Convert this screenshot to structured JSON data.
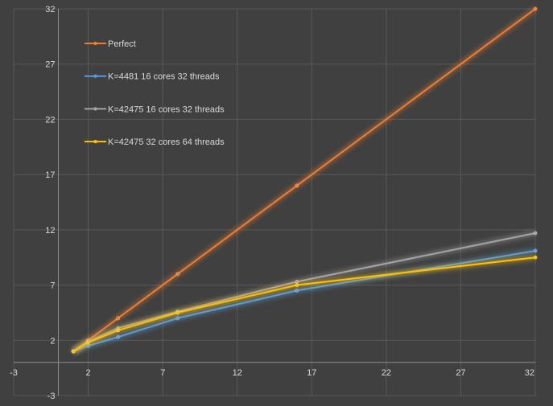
{
  "chart_data": {
    "type": "scatter",
    "title": "",
    "xlabel": "",
    "ylabel": "",
    "xlim": [
      -3,
      32
    ],
    "ylim": [
      -3,
      32
    ],
    "xticks": [
      -3,
      2,
      7,
      12,
      17,
      22,
      27,
      32
    ],
    "yticks": [
      -3,
      2,
      7,
      12,
      17,
      22,
      27,
      32
    ],
    "grid": true,
    "legend_position": "top-left",
    "series": [
      {
        "name": "Perfect",
        "color": "#ed7d31",
        "x": [
          1,
          2,
          4,
          8,
          16,
          32
        ],
        "y": [
          1,
          2,
          4,
          8,
          16,
          32
        ]
      },
      {
        "name": "K=4481 16 cores 32 threads",
        "color": "#5b9bd5",
        "x": [
          1,
          2,
          4,
          8,
          16,
          32
        ],
        "y": [
          1,
          1.5,
          2.3,
          4.0,
          6.5,
          10.1
        ]
      },
      {
        "name": "K=42475 16 cores 32 threads",
        "color": "#a5a5a5",
        "x": [
          1,
          2,
          4,
          8,
          16,
          32
        ],
        "y": [
          1,
          1.9,
          3.1,
          4.6,
          7.3,
          11.7
        ]
      },
      {
        "name": "K=42475 32 cores 64 threads",
        "color": "#ffc000",
        "x": [
          1,
          2,
          4,
          8,
          16,
          32
        ],
        "y": [
          1,
          1.8,
          2.9,
          4.5,
          7.0,
          9.5
        ]
      }
    ]
  }
}
